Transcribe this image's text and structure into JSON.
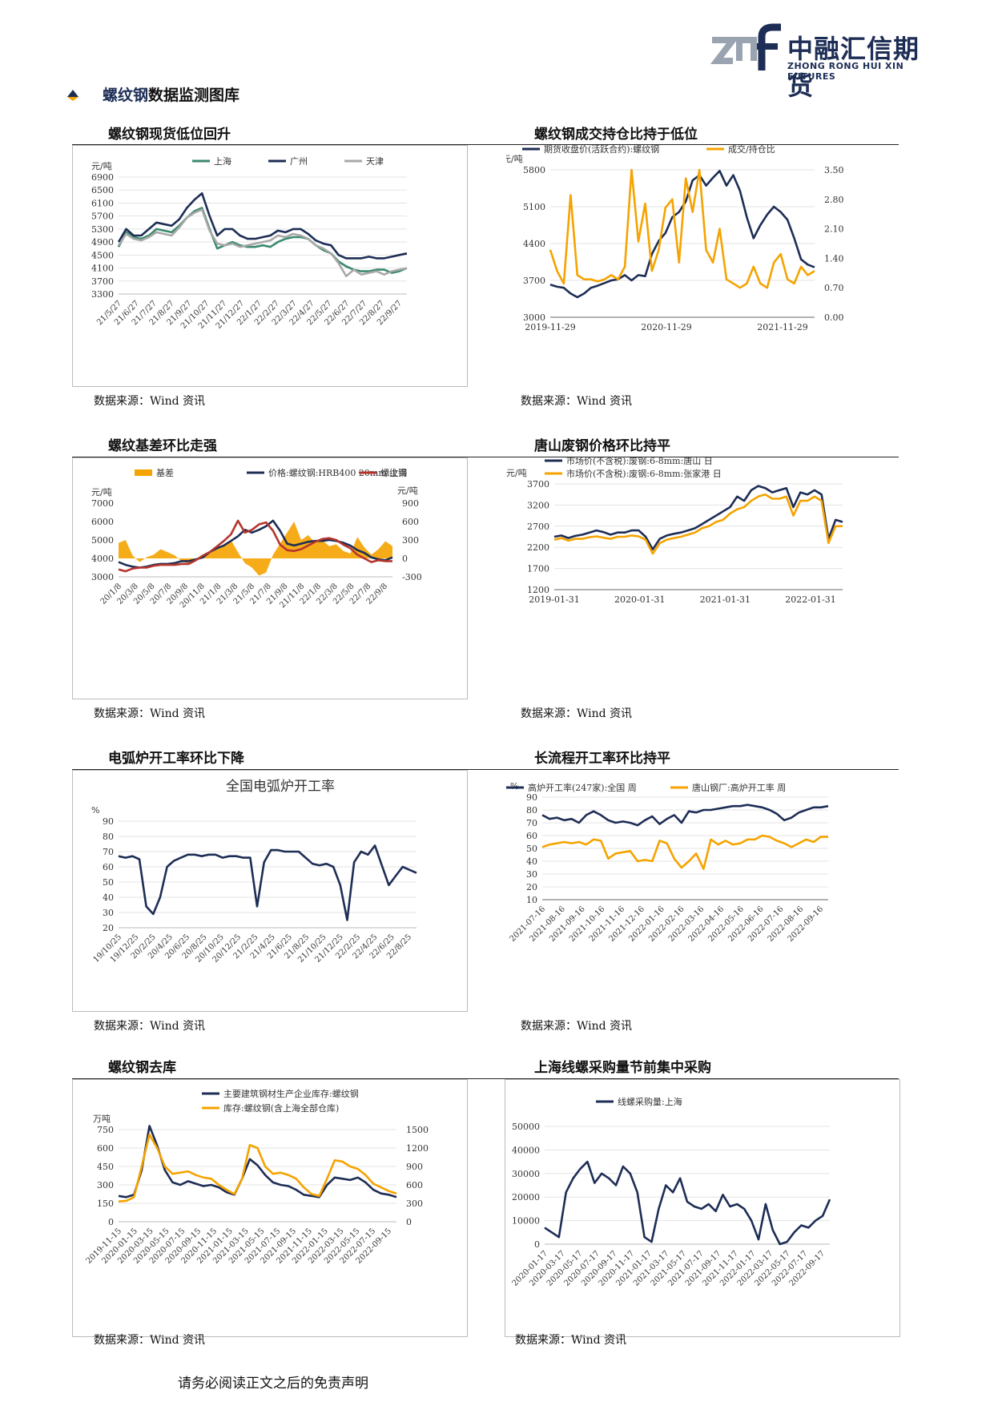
{
  "header": {
    "logo_cn": "中融汇信期货",
    "logo_en": "ZHONG RONG HUI XIN FUTURES"
  },
  "section": {
    "title_highlight": "螺纹钢",
    "title_rest": "数据监测图库"
  },
  "source_text": "数据来源：Wind 资讯",
  "footer": "请务必阅读正文之后的免责声明",
  "colors": {
    "navy": "#1d2d55",
    "orange": "#f5a300",
    "green": "#3a8a6e",
    "gray": "#a8a8a8",
    "red": "#b5352c"
  },
  "panels": [
    {
      "title": "螺纹钢现货低位回升"
    },
    {
      "title": "螺纹钢成交持仓比持于低位"
    },
    {
      "title": "螺纹基差环比走强"
    },
    {
      "title": "唐山废钢价格环比持平"
    },
    {
      "title": "电弧炉开工率环比下降"
    },
    {
      "title": "长流程开工率环比持平"
    },
    {
      "title": "螺纹钢去库"
    },
    {
      "title": "上海线螺采购量节前集中采购"
    }
  ],
  "chart_data": [
    {
      "type": "line",
      "title": "螺纹钢现货低位回升",
      "ylabel": "元/吨",
      "ylim": [
        3300,
        6900
      ],
      "yticks": [
        3300,
        3700,
        4100,
        4500,
        4900,
        5300,
        5700,
        6100,
        6500,
        6900
      ],
      "x_ticks": [
        "21/5/27",
        "21/6/27",
        "21/7/27",
        "21/8/27",
        "21/9/27",
        "21/10/27",
        "21/11/27",
        "21/12/27",
        "22/1/27",
        "22/2/27",
        "22/3/27",
        "22/4/27",
        "22/5/27",
        "22/6/27",
        "22/7/27",
        "22/8/27",
        "22/9/27"
      ],
      "series": [
        {
          "name": "上海",
          "color": "#3a8a6e",
          "values": [
            4750,
            5200,
            5050,
            5000,
            5100,
            5300,
            5250,
            5200,
            5400,
            5650,
            5850,
            5950,
            5300,
            4700,
            4800,
            4900,
            4800,
            4750,
            4750,
            4800,
            4750,
            4900,
            5000,
            5050,
            5050,
            5000,
            4800,
            4650,
            4550,
            4300,
            4150,
            4050,
            4000,
            4000,
            4050,
            4050,
            3950,
            4000,
            4100
          ]
        },
        {
          "name": "广州",
          "color": "#1d2d55",
          "values": [
            4900,
            5300,
            5100,
            5100,
            5300,
            5500,
            5450,
            5400,
            5600,
            5950,
            6200,
            6400,
            5700,
            5100,
            5300,
            5300,
            5100,
            5000,
            5000,
            5050,
            5100,
            5250,
            5200,
            5300,
            5300,
            5150,
            4950,
            4850,
            4800,
            4500,
            4400,
            4400,
            4400,
            4450,
            4400,
            4400,
            4450,
            4500,
            4550
          ]
        },
        {
          "name": "天津",
          "color": "#a8a8a8",
          "values": [
            4800,
            5150,
            5000,
            4950,
            5050,
            5200,
            5150,
            5100,
            5350,
            5650,
            5800,
            5900,
            5250,
            4850,
            4800,
            4850,
            4750,
            4800,
            4850,
            4900,
            4950,
            5100,
            5050,
            5150,
            5100,
            5000,
            4800,
            4700,
            4550,
            4250,
            3850,
            4050,
            3900,
            3950,
            4000,
            3900,
            4000,
            4050,
            4100
          ]
        }
      ]
    },
    {
      "type": "line",
      "title": "螺纹钢成交持仓比持于低位",
      "ylabel": "元/吨",
      "ylim": [
        3000,
        5800
      ],
      "yticks": [
        3000,
        3700,
        4400,
        5100,
        5800
      ],
      "y2lim": [
        0.0,
        3.5
      ],
      "y2ticks": [
        "0.00",
        "0.70",
        "1.40",
        "2.10",
        "2.80",
        "3.50"
      ],
      "x_ticks": [
        "2019-11-29",
        "2020-11-29",
        "2021-11-29"
      ],
      "series": [
        {
          "name": "期货收盘价(活跃合约):螺纹钢",
          "color": "#1d2d55",
          "axis": "left",
          "values": [
            3620,
            3580,
            3560,
            3450,
            3380,
            3450,
            3560,
            3600,
            3650,
            3700,
            3720,
            3800,
            3700,
            3800,
            3780,
            4200,
            4450,
            4600,
            4900,
            5000,
            5200,
            5600,
            5700,
            5500,
            5650,
            5780,
            5500,
            5700,
            5400,
            4900,
            4500,
            4750,
            4950,
            5100,
            5000,
            4850,
            4500,
            4100,
            4000,
            3950
          ]
        },
        {
          "name": "成交/持仓比",
          "color": "#f5a300",
          "axis": "right",
          "values": [
            1.6,
            1.1,
            0.8,
            2.9,
            1.0,
            0.9,
            0.9,
            0.85,
            0.9,
            1.0,
            0.9,
            1.2,
            3.5,
            1.8,
            2.7,
            1.1,
            1.6,
            2.6,
            2.8,
            1.3,
            3.3,
            2.5,
            3.5,
            1.6,
            1.3,
            2.1,
            0.9,
            0.8,
            0.7,
            0.8,
            1.2,
            0.8,
            0.7,
            1.3,
            1.5,
            0.9,
            0.8,
            1.2,
            1.0,
            1.1
          ]
        }
      ]
    },
    {
      "type": "line",
      "title": "螺纹基差环比走强",
      "ylabel": "元/吨",
      "ylim": [
        3000,
        7000
      ],
      "yticks": [
        3000,
        4000,
        5000,
        6000,
        7000
      ],
      "y2label": "元/吨",
      "y2lim": [
        -300,
        900
      ],
      "y2ticks": [
        -300,
        0,
        300,
        600,
        900
      ],
      "x_ticks": [
        "20/1/8",
        "20/3/8",
        "20/5/8",
        "20/7/8",
        "20/9/8",
        "20/11/8",
        "21/1/8",
        "21/3/8",
        "21/5/8",
        "21/7/8",
        "21/9/8",
        "21/11/8",
        "22/1/8",
        "22/3/8",
        "22/5/8",
        "22/7/8",
        "22/9/8"
      ],
      "series": [
        {
          "name": "基差",
          "color": "#f5a300",
          "type": "area",
          "axis": "right",
          "values": [
            250,
            300,
            50,
            -60,
            20,
            60,
            150,
            100,
            50,
            -50,
            -80,
            -40,
            50,
            90,
            170,
            200,
            300,
            100,
            -80,
            -150,
            -280,
            -230,
            60,
            240,
            420,
            600,
            300,
            380,
            250,
            300,
            200,
            230,
            120,
            80,
            350,
            180,
            60,
            150,
            280,
            200
          ]
        },
        {
          "name": "价格:螺纹钢:HRB400 20mm:上海",
          "color": "#1d2d55",
          "axis": "left",
          "values": [
            3800,
            3650,
            3550,
            3500,
            3550,
            3650,
            3700,
            3700,
            3750,
            3850,
            3850,
            3950,
            4050,
            4350,
            4550,
            4700,
            4950,
            5200,
            5550,
            5400,
            5550,
            5750,
            6050,
            5500,
            4800,
            4700,
            4800,
            4900,
            4950,
            4950,
            5000,
            4950,
            4850,
            4700,
            4450,
            4300,
            4050,
            3950,
            3900,
            4050
          ]
        },
        {
          "name": "螺纹钢",
          "color": "#b5352c",
          "axis": "left",
          "values": [
            3400,
            3300,
            3450,
            3500,
            3500,
            3600,
            3650,
            3650,
            3650,
            3700,
            3700,
            3900,
            4150,
            4350,
            4650,
            4950,
            5300,
            6050,
            5400,
            5550,
            5850,
            5950,
            5500,
            4750,
            4450,
            4400,
            4500,
            4700,
            4900,
            5050,
            5100,
            5000,
            4750,
            4550,
            4200,
            4000,
            3800,
            3900,
            3850,
            3850
          ]
        }
      ]
    },
    {
      "type": "line",
      "title": "唐山废钢价格环比持平",
      "ylabel": "元/吨",
      "ylim": [
        1200,
        3700
      ],
      "yticks": [
        1200,
        1700,
        2200,
        2700,
        3200,
        3700
      ],
      "x_ticks": [
        "2019-01-31",
        "2020-01-31",
        "2021-01-31",
        "2022-01-31"
      ],
      "series": [
        {
          "name": "市场价(不含税):废钢:6-8mm:唐山 日",
          "color": "#1d2d55",
          "values": [
            2450,
            2480,
            2420,
            2470,
            2500,
            2550,
            2600,
            2560,
            2500,
            2550,
            2550,
            2600,
            2600,
            2450,
            2150,
            2400,
            2480,
            2520,
            2550,
            2600,
            2650,
            2750,
            2850,
            2950,
            3050,
            3150,
            3400,
            3300,
            3550,
            3650,
            3600,
            3500,
            3550,
            3600,
            3150,
            3500,
            3450,
            3550,
            3450,
            2400,
            2850,
            2800
          ]
        },
        {
          "name": "市场价(不含税):废钢:6-8mm:张家港 日",
          "color": "#f5a300",
          "values": [
            2380,
            2420,
            2360,
            2400,
            2400,
            2440,
            2460,
            2430,
            2400,
            2450,
            2450,
            2480,
            2460,
            2380,
            2050,
            2300,
            2380,
            2420,
            2450,
            2500,
            2550,
            2650,
            2700,
            2800,
            2850,
            3000,
            3100,
            3150,
            3300,
            3400,
            3450,
            3350,
            3350,
            3400,
            2950,
            3300,
            3300,
            3400,
            3300,
            2300,
            2700,
            2700
          ]
        }
      ]
    },
    {
      "type": "line",
      "title": "电弧炉开工率环比下降",
      "subtitle": "全国电弧炉开工率",
      "ylabel": "%",
      "ylim": [
        20,
        90
      ],
      "yticks": [
        20,
        30,
        40,
        50,
        60,
        70,
        80,
        90
      ],
      "x_ticks": [
        "19/10/25",
        "19/12/25",
        "20/2/25",
        "20/4/25",
        "20/6/25",
        "20/8/25",
        "20/10/25",
        "20/12/25",
        "21/2/25",
        "21/4/25",
        "21/6/25",
        "21/8/25",
        "21/10/25",
        "21/12/25",
        "22/2/25",
        "22/4/25",
        "22/6/25",
        "22/8/25"
      ],
      "series": [
        {
          "name": "全国电弧炉开工率",
          "color": "#1d2d55",
          "values": [
            67,
            66,
            67,
            65,
            34,
            29,
            40,
            60,
            64,
            66,
            68,
            68,
            67,
            68,
            68,
            66,
            67,
            67,
            66,
            66,
            34,
            63,
            71,
            71,
            70,
            70,
            70,
            66,
            62,
            61,
            62,
            60,
            48,
            25,
            63,
            70,
            68,
            74,
            61,
            48,
            54,
            60,
            58,
            56
          ]
        }
      ]
    },
    {
      "type": "line",
      "title": "长流程开工率环比持平",
      "ylabel": "%",
      "ylim": [
        10,
        90
      ],
      "yticks": [
        10,
        20,
        30,
        40,
        50,
        60,
        70,
        80,
        90
      ],
      "x_ticks": [
        "2021-07-16",
        "2021-08-16",
        "2021-09-16",
        "2021-10-16",
        "2021-11-16",
        "2021-12-16",
        "2022-01-16",
        "2022-02-16",
        "2022-03-16",
        "2022-04-16",
        "2022-05-16",
        "2022-06-16",
        "2022-07-16",
        "2022-08-16",
        "2022-09-16"
      ],
      "series": [
        {
          "name": "高炉开工率(247家):全国 周",
          "color": "#1d2d55",
          "values": [
            76,
            73,
            74,
            72,
            73,
            70,
            76,
            79,
            76,
            72,
            70,
            71,
            70,
            68,
            72,
            75,
            69,
            73,
            76,
            70,
            79,
            78,
            80,
            80,
            81,
            82,
            83,
            83,
            84,
            83,
            82,
            80,
            77,
            72,
            74,
            78,
            80,
            82,
            82,
            83
          ]
        },
        {
          "name": "唐山钢厂:高炉开工率 周",
          "color": "#f5a300",
          "values": [
            51,
            53,
            54,
            55,
            54,
            55,
            53,
            57,
            56,
            42,
            46,
            47,
            48,
            40,
            41,
            40,
            56,
            54,
            42,
            35,
            40,
            46,
            34,
            57,
            53,
            56,
            53,
            54,
            57,
            57,
            60,
            59,
            56,
            54,
            51,
            54,
            57,
            55,
            59,
            59
          ]
        }
      ]
    },
    {
      "type": "line",
      "title": "螺纹钢去库",
      "ylabel": "万吨",
      "ylim": [
        0,
        750
      ],
      "yticks": [
        0,
        150,
        300,
        450,
        600,
        750
      ],
      "y2lim": [
        0,
        1500
      ],
      "y2ticks": [
        0,
        300,
        600,
        900,
        1200,
        1500
      ],
      "x_ticks": [
        "2019-11-15",
        "2020-01-15",
        "2020-03-15",
        "2020-05-15",
        "2020-07-15",
        "2020-09-15",
        "2020-11-15",
        "2021-01-15",
        "2021-03-15",
        "2021-05-15",
        "2021-07-15",
        "2021-09-15",
        "2021-11-15",
        "2022-01-15",
        "2022-03-15",
        "2022-05-15",
        "2022-07-15",
        "2022-09-15"
      ],
      "series": [
        {
          "name": "主要建筑钢材生产企业库存:螺纹钢",
          "color": "#1d2d55",
          "axis": "left",
          "values": [
            210,
            200,
            220,
            420,
            780,
            620,
            420,
            320,
            300,
            330,
            310,
            290,
            300,
            280,
            240,
            220,
            350,
            510,
            460,
            380,
            320,
            300,
            290,
            260,
            220,
            210,
            200,
            300,
            360,
            350,
            340,
            360,
            320,
            260,
            230,
            220,
            200
          ]
        },
        {
          "name": "库存:螺纹钢(含上海全部仓库)",
          "color": "#f5a300",
          "axis": "right",
          "values": [
            330,
            340,
            400,
            900,
            1420,
            1200,
            900,
            780,
            800,
            820,
            760,
            720,
            700,
            600,
            520,
            450,
            700,
            1250,
            1200,
            900,
            780,
            800,
            760,
            700,
            560,
            450,
            420,
            700,
            1000,
            980,
            900,
            860,
            760,
            620,
            560,
            500,
            460
          ]
        }
      ]
    },
    {
      "type": "line",
      "title": "上海线螺采购量节前集中采购",
      "ylabel": "吨",
      "ylim": [
        0,
        50000
      ],
      "yticks": [
        0,
        10000,
        20000,
        30000,
        40000,
        50000
      ],
      "x_ticks": [
        "2020-01-17",
        "2020-03-17",
        "2020-05-17",
        "2020-07-17",
        "2020-09-17",
        "2020-11-17",
        "2021-01-17",
        "2021-03-17",
        "2021-05-17",
        "2021-07-17",
        "2021-09-17",
        "2021-11-17",
        "2022-01-17",
        "2022-03-17",
        "2022-05-17",
        "2022-07-17",
        "2022-09-17"
      ],
      "series": [
        {
          "name": "线螺采购量:上海",
          "color": "#1d2d55",
          "values": [
            7000,
            5000,
            3000,
            22000,
            28000,
            32000,
            35000,
            26000,
            30000,
            28000,
            25000,
            33000,
            30000,
            22000,
            3000,
            1000,
            15000,
            25000,
            22000,
            28000,
            18000,
            16000,
            15000,
            17000,
            14000,
            21000,
            16000,
            17000,
            15000,
            10000,
            2000,
            17000,
            6000,
            0,
            1000,
            5000,
            8000,
            7000,
            10000,
            12000,
            19000
          ]
        }
      ]
    }
  ]
}
